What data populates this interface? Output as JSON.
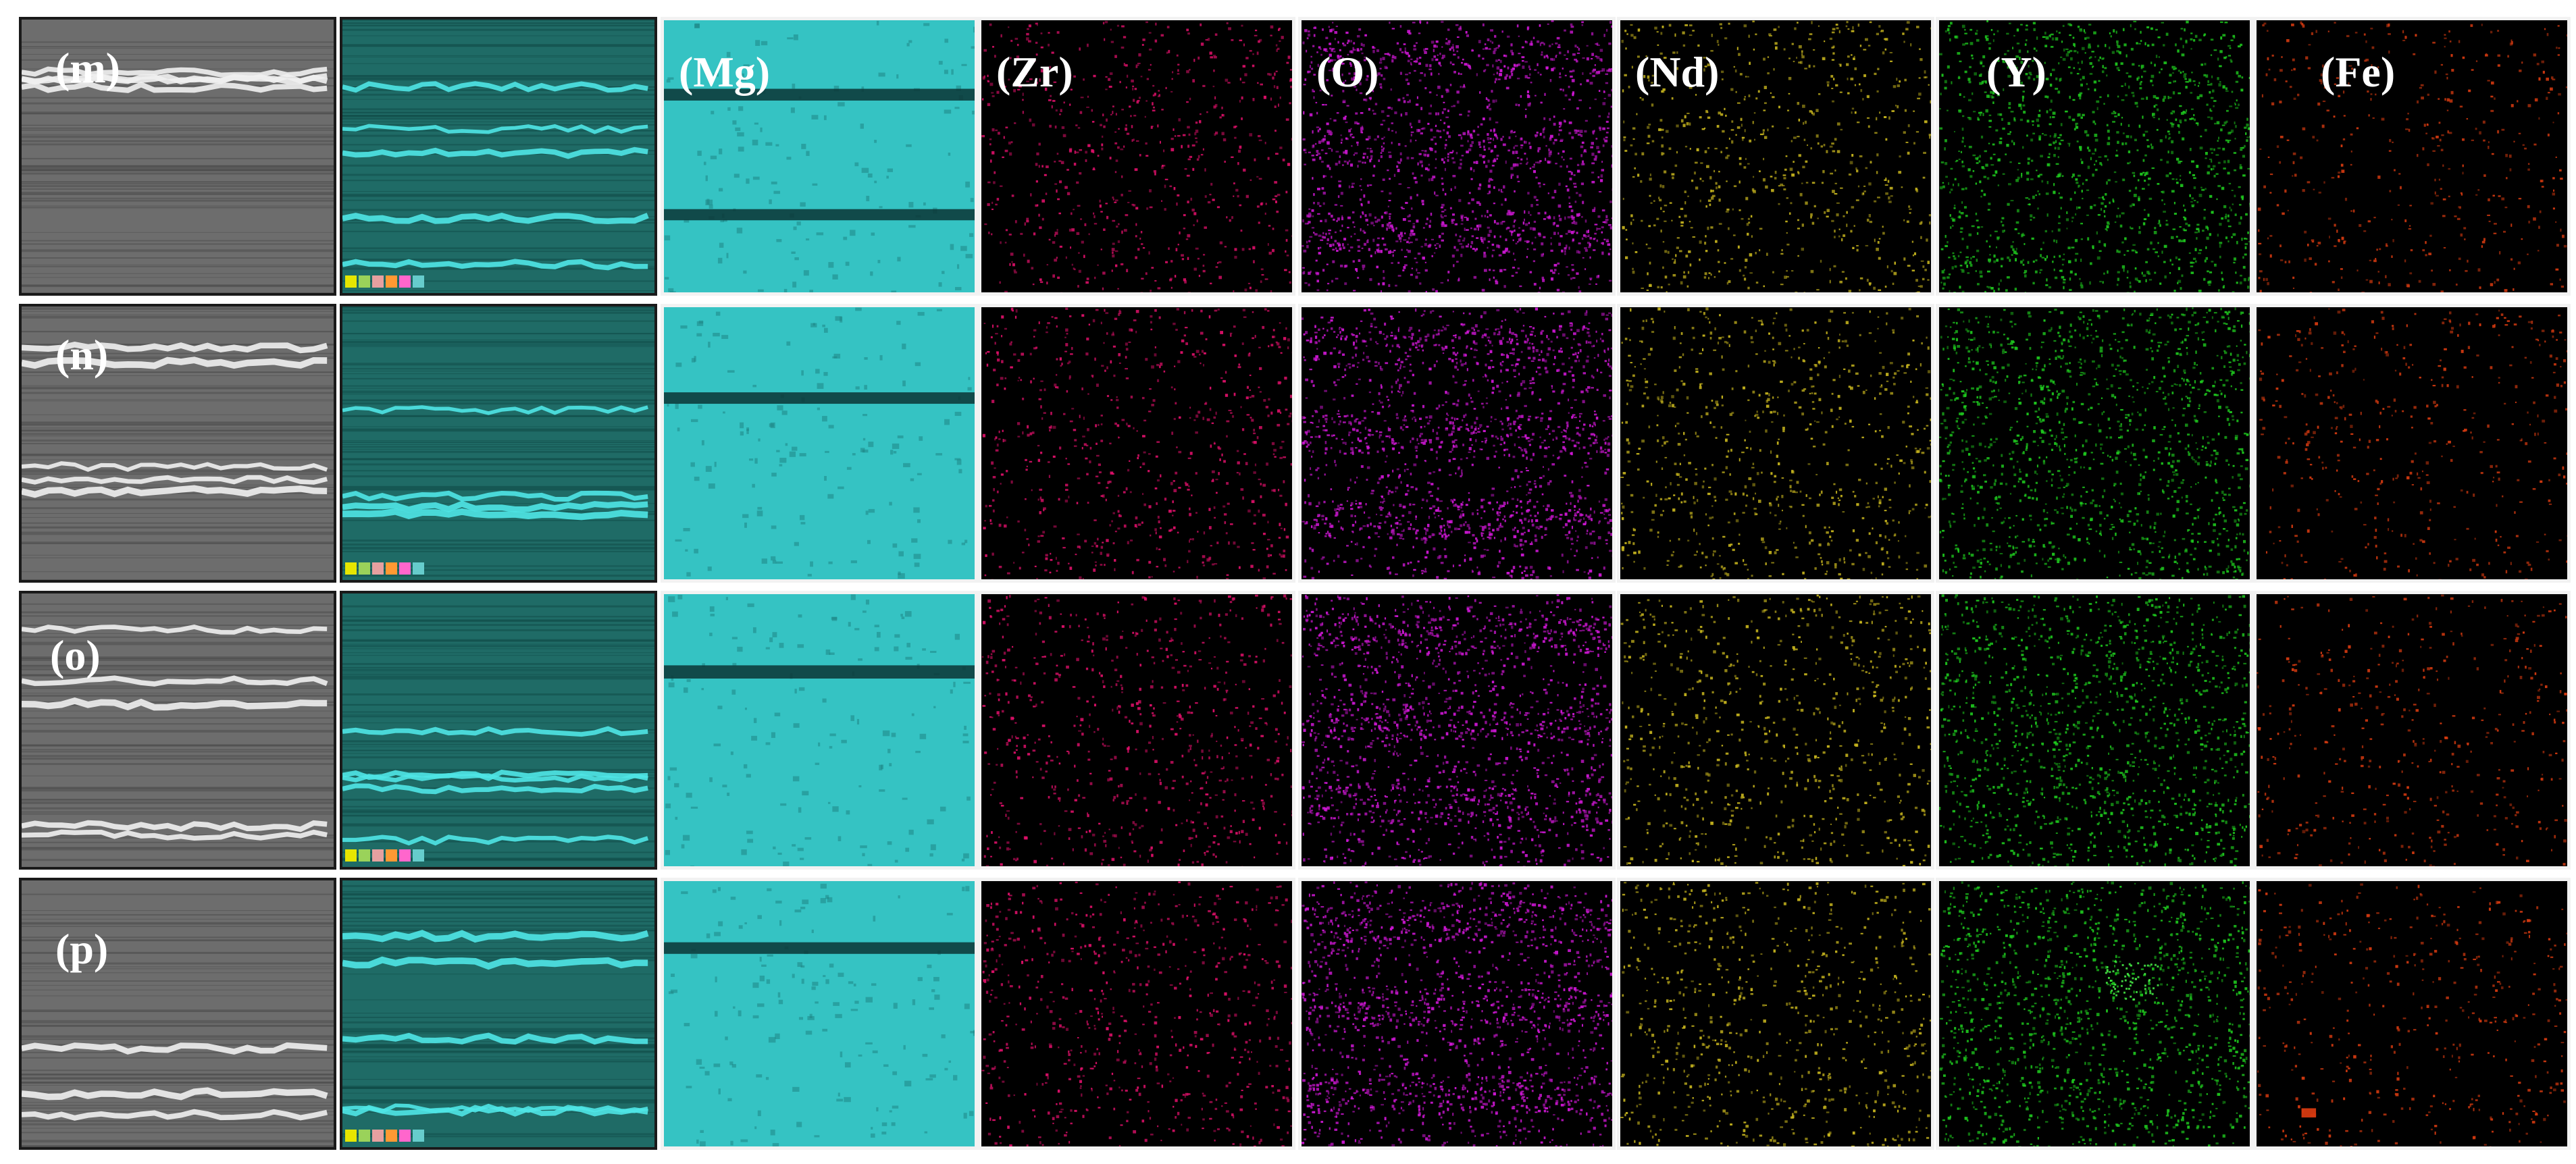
{
  "figure": {
    "row_labels": [
      "(m)",
      "(n)",
      "(o)",
      "(p)"
    ],
    "element_labels": [
      "(Mg)",
      "(Zr)",
      "(O)",
      "(Nd)",
      "(Y)",
      "(Fe)"
    ],
    "element_icons": [
      "mg-map-icon",
      "zr-map-icon",
      "o-map-icon",
      "nd-map-icon",
      "y-map-icon",
      "fe-map-icon"
    ],
    "colors": {
      "background": "#ffffff",
      "sem": "#6d6d6d",
      "overlay": "#1f6b66",
      "Mg": "#35c3c3",
      "Zr": "#e0106a",
      "O": "#d017d6",
      "Nd": "#c8b61e",
      "Y": "#1ec81e",
      "Fe": "#d63a10"
    },
    "legend_colors": [
      "#e6e600",
      "#9ad25a",
      "#e6a0a0",
      "#ff9933",
      "#ff66cc",
      "#66cccc"
    ]
  }
}
